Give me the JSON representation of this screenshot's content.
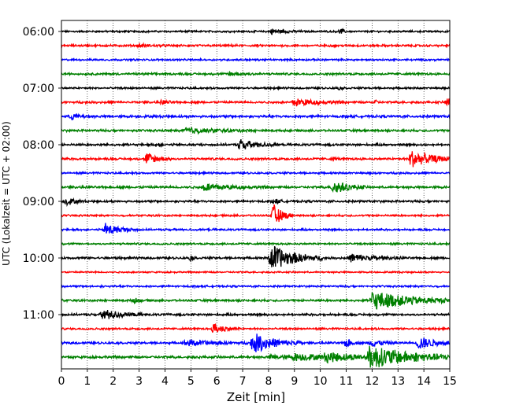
{
  "chart_data": {
    "type": "line",
    "xlabel": "Zeit  [min]",
    "ylabel": "UTC (Lokalzeit = UTC + 02:00)",
    "xlim": [
      0,
      15
    ],
    "x_ticks": [
      "0",
      "1",
      "2",
      "3",
      "4",
      "5",
      "6",
      "7",
      "8",
      "9",
      "10",
      "11",
      "12",
      "13",
      "14",
      "15"
    ],
    "y_ticks": [
      {
        "label": "06:00",
        "trace": 0
      },
      {
        "label": "07:00",
        "trace": 4
      },
      {
        "label": "08:00",
        "trace": 8
      },
      {
        "label": "09:00",
        "trace": 12
      },
      {
        "label": "10:00",
        "trace": 16
      },
      {
        "label": "11:00",
        "trace": 20
      }
    ],
    "grid": "vertical dotted at each minute",
    "trace_minutes": 15,
    "color_cycle": [
      "#000000",
      "#ff0000",
      "#0000ff",
      "#008000"
    ],
    "traces": [
      {
        "start": "06:00",
        "noise": 0.1,
        "events": [
          {
            "t": 8.1,
            "amp": 0.35,
            "dur": 0.5
          },
          {
            "t": 10.8,
            "amp": 0.4,
            "dur": 0.1
          }
        ]
      },
      {
        "start": "06:15",
        "noise": 0.12,
        "events": [
          {
            "t": 3.0,
            "amp": 0.2,
            "dur": 0.4
          }
        ]
      },
      {
        "start": "06:30",
        "noise": 0.1,
        "events": []
      },
      {
        "start": "06:45",
        "noise": 0.12,
        "events": [
          {
            "t": 6.5,
            "amp": 0.25,
            "dur": 0.5
          }
        ]
      },
      {
        "start": "07:00",
        "noise": 0.1,
        "events": [
          {
            "t": 10.7,
            "amp": 0.2,
            "dur": 0.1
          }
        ]
      },
      {
        "start": "07:15",
        "noise": 0.12,
        "events": [
          {
            "t": 3.9,
            "amp": 0.3,
            "dur": 0.2
          },
          {
            "t": 9.0,
            "amp": 0.55,
            "dur": 0.8
          },
          {
            "t": 12.1,
            "amp": 0.3,
            "dur": 0.1
          },
          {
            "t": 14.9,
            "amp": 0.6,
            "dur": 0.2
          }
        ]
      },
      {
        "start": "07:30",
        "noise": 0.14,
        "events": [
          {
            "t": 0.4,
            "amp": 0.45,
            "dur": 0.3
          }
        ]
      },
      {
        "start": "07:45",
        "noise": 0.12,
        "events": [
          {
            "t": 4.8,
            "amp": 0.35,
            "dur": 1.2
          }
        ]
      },
      {
        "start": "08:00",
        "noise": 0.12,
        "events": [
          {
            "t": 6.9,
            "amp": 0.75,
            "dur": 0.6
          },
          {
            "t": 3.7,
            "amp": 0.25,
            "dur": 0.1
          }
        ]
      },
      {
        "start": "08:15",
        "noise": 0.12,
        "events": [
          {
            "t": 3.3,
            "amp": 0.85,
            "dur": 0.4
          },
          {
            "t": 13.5,
            "amp": 1.2,
            "dur": 0.8
          },
          {
            "t": 10.5,
            "amp": 0.3,
            "dur": 0.1
          }
        ]
      },
      {
        "start": "08:30",
        "noise": 0.1,
        "events": []
      },
      {
        "start": "08:45",
        "noise": 0.13,
        "events": [
          {
            "t": 5.5,
            "amp": 0.5,
            "dur": 1.0
          },
          {
            "t": 10.5,
            "amp": 1.0,
            "dur": 0.5
          }
        ]
      },
      {
        "start": "09:00",
        "noise": 0.12,
        "events": [
          {
            "t": 0.2,
            "amp": 0.5,
            "dur": 0.3
          },
          {
            "t": 8.2,
            "amp": 0.35,
            "dur": 0.2
          }
        ]
      },
      {
        "start": "09:15",
        "noise": 0.1,
        "events": [
          {
            "t": 8.2,
            "amp": 1.6,
            "dur": 0.3
          }
        ]
      },
      {
        "start": "09:30",
        "noise": 0.1,
        "events": [
          {
            "t": 1.7,
            "amp": 0.9,
            "dur": 0.5
          }
        ]
      },
      {
        "start": "09:45",
        "noise": 0.1,
        "events": []
      },
      {
        "start": "10:00",
        "noise": 0.12,
        "events": [
          {
            "t": 5.0,
            "amp": 0.35,
            "dur": 0.1
          },
          {
            "t": 8.1,
            "amp": 1.9,
            "dur": 0.8
          },
          {
            "t": 11.2,
            "amp": 0.6,
            "dur": 0.8
          }
        ]
      },
      {
        "start": "10:15",
        "noise": 0.08,
        "events": []
      },
      {
        "start": "10:30",
        "noise": 0.1,
        "events": []
      },
      {
        "start": "10:45",
        "noise": 0.12,
        "events": [
          {
            "t": 2.8,
            "amp": 0.3,
            "dur": 0.2
          },
          {
            "t": 12.0,
            "amp": 1.3,
            "dur": 1.5
          }
        ]
      },
      {
        "start": "11:00",
        "noise": 0.12,
        "events": [
          {
            "t": 1.6,
            "amp": 0.8,
            "dur": 0.6
          },
          {
            "t": 3.0,
            "amp": 0.2,
            "dur": 0.1
          }
        ]
      },
      {
        "start": "11:15",
        "noise": 0.1,
        "events": [
          {
            "t": 5.9,
            "amp": 0.75,
            "dur": 0.4
          }
        ]
      },
      {
        "start": "11:30",
        "noise": 0.12,
        "events": [
          {
            "t": 4.8,
            "amp": 0.4,
            "dur": 1.0
          },
          {
            "t": 7.4,
            "amp": 1.4,
            "dur": 0.8
          },
          {
            "t": 11.0,
            "amp": 0.6,
            "dur": 0.2
          },
          {
            "t": 12.0,
            "amp": 0.5,
            "dur": 0.4
          },
          {
            "t": 13.8,
            "amp": 0.9,
            "dur": 0.6
          }
        ]
      },
      {
        "start": "11:45",
        "noise": 0.14,
        "events": [
          {
            "t": 9.0,
            "amp": 0.45,
            "dur": 1.5
          },
          {
            "t": 10.2,
            "amp": 0.7,
            "dur": 1.2
          },
          {
            "t": 11.9,
            "amp": 1.6,
            "dur": 1.6
          },
          {
            "t": 8.1,
            "amp": 0.3,
            "dur": 0.6
          }
        ]
      }
    ]
  }
}
